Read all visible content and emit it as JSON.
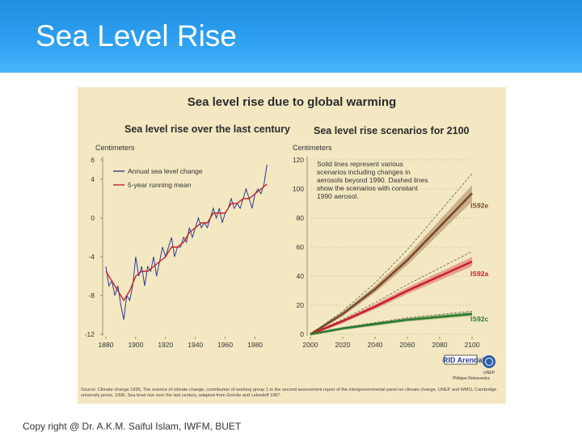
{
  "slide": {
    "title": "Sea Level Rise",
    "footer": "Copy right @ Dr. A.K.M. Saiful Islam, IWFM, BUET"
  },
  "figure": {
    "title": "Sea level rise due to global warming",
    "source": "Source: Climate change 1995, The science of climate change, contribution of working group 1 to the second assessment report of the intergovernmental panel on climate change, UNEP and WMO, Cambridge university press, 1996; Sea level rise over the last century, adapted from Gornitz and Lebedeff 1987.",
    "logo_text": "GRID Arendal",
    "logo_sub": "UNEP",
    "logo_caption": "Philippe Rekacewicz"
  },
  "chart_data": [
    {
      "type": "line",
      "title": "Sea level rise over the last century",
      "ylabel": "Centimeters",
      "xlabel": "",
      "xlim": [
        1880,
        1990
      ],
      "ylim": [
        -12,
        6
      ],
      "xticks": [
        "1880",
        "1900",
        "1920",
        "1940",
        "1960",
        "1980"
      ],
      "yticks": [
        "6",
        "4",
        "0",
        "-4",
        "-8",
        "-12"
      ],
      "legend": "top-left",
      "series": [
        {
          "name": "Annual sea level change",
          "color": "#2a3f8f",
          "x": [
            1880,
            1882,
            1884,
            1886,
            1888,
            1890,
            1892,
            1894,
            1896,
            1898,
            1900,
            1902,
            1904,
            1906,
            1908,
            1910,
            1912,
            1914,
            1916,
            1918,
            1920,
            1922,
            1924,
            1926,
            1928,
            1930,
            1932,
            1934,
            1936,
            1938,
            1940,
            1942,
            1944,
            1946,
            1948,
            1950,
            1952,
            1954,
            1956,
            1958,
            1960,
            1962,
            1964,
            1966,
            1968,
            1970,
            1972,
            1974,
            1976,
            1978,
            1980,
            1982,
            1984,
            1986,
            1988
          ],
          "values": [
            -5,
            -7,
            -6.5,
            -8,
            -7,
            -9,
            -10.5,
            -8,
            -8.5,
            -7,
            -4,
            -6,
            -5,
            -7,
            -5,
            -5.5,
            -4,
            -6,
            -4.5,
            -3,
            -4,
            -3,
            -2,
            -4,
            -3,
            -3,
            -2,
            -2.5,
            -1,
            -2,
            -1,
            0,
            -1,
            -0.5,
            -1,
            0,
            1,
            0,
            1,
            -0.5,
            0.5,
            1,
            2,
            1,
            1.5,
            1,
            2,
            3,
            2,
            1,
            2.5,
            3,
            2.5,
            3.5,
            5.5
          ]
        },
        {
          "name": "5-year running mean",
          "color": "#c8202c",
          "x": [
            1880,
            1884,
            1888,
            1892,
            1896,
            1900,
            1904,
            1908,
            1912,
            1916,
            1920,
            1924,
            1928,
            1932,
            1936,
            1940,
            1944,
            1948,
            1952,
            1956,
            1960,
            1964,
            1968,
            1972,
            1976,
            1980,
            1984,
            1988
          ],
          "values": [
            -5.5,
            -6.5,
            -7.5,
            -8.5,
            -7.5,
            -6,
            -5.5,
            -5.5,
            -5,
            -4.5,
            -4,
            -3,
            -3,
            -2.5,
            -1.5,
            -1,
            -0.5,
            -0.5,
            0.5,
            0.5,
            0.5,
            1.5,
            1.5,
            2,
            2,
            2.5,
            3,
            3.5
          ]
        }
      ]
    },
    {
      "type": "line",
      "title": "Sea level rise scenarios for 2100",
      "ylabel": "Centimeters",
      "xlabel": "",
      "xlim": [
        2000,
        2100
      ],
      "ylim": [
        0,
        120
      ],
      "xticks": [
        "2000",
        "2020",
        "2040",
        "2060",
        "2080",
        "2100"
      ],
      "yticks": [
        "120",
        "100",
        "80",
        "60",
        "40",
        "20",
        "0"
      ],
      "annotation": "Solid lines represent various scenarios including changes in aerosols beyond 1990. Dashed lines show the scenarios with constant 1990 aerosol.",
      "series": [
        {
          "name": "IS92e",
          "color": "#7a4a26",
          "x": [
            2000,
            2020,
            2040,
            2060,
            2080,
            2100
          ],
          "values": [
            0,
            14,
            31,
            51,
            74,
            97
          ]
        },
        {
          "name": "IS92a",
          "color": "#c8202c",
          "x": [
            2000,
            2020,
            2040,
            2060,
            2080,
            2100
          ],
          "values": [
            0,
            9,
            19,
            30,
            40,
            50
          ]
        },
        {
          "name": "IS92c",
          "color": "#2f7a2f",
          "x": [
            2000,
            2020,
            2040,
            2060,
            2080,
            2100
          ],
          "values": [
            0,
            4,
            7,
            10,
            12,
            14
          ]
        }
      ]
    }
  ]
}
